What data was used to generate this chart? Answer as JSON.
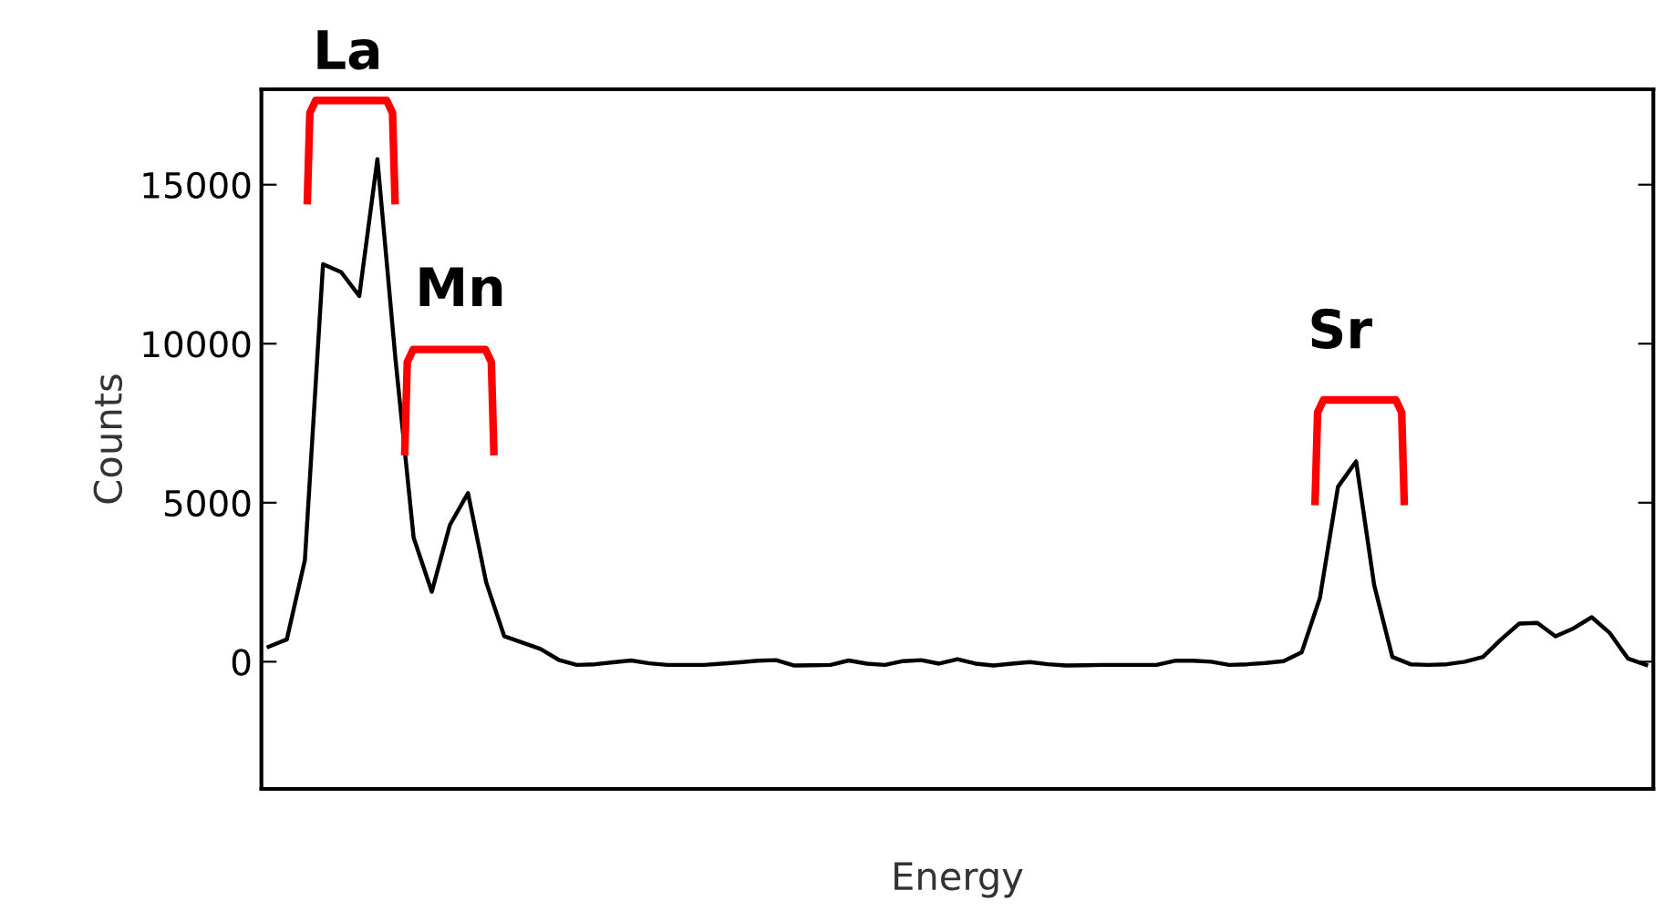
{
  "chart_data": {
    "type": "line",
    "xlabel": "Energy",
    "ylabel": "Counts",
    "categories": [
      null,
      null,
      null,
      null,
      null,
      null,
      null,
      null,
      null,
      null,
      null,
      null,
      null,
      null,
      null,
      null,
      null,
      null,
      null,
      null,
      null,
      null,
      null,
      null,
      null,
      null,
      null,
      null,
      null,
      null,
      null,
      null,
      null,
      null,
      null,
      null,
      null,
      null,
      null,
      null,
      null,
      null,
      null,
      null,
      null,
      null,
      null,
      null,
      null,
      null,
      null,
      null,
      null,
      null,
      null,
      null,
      null,
      null,
      null,
      null,
      null,
      null,
      null,
      null,
      null,
      null,
      null,
      null,
      null,
      null,
      null,
      null,
      null,
      null,
      null,
      null,
      null
    ],
    "series": [
      {
        "color": "#000000",
        "values": [
          470,
          700,
          3200,
          12500,
          12250,
          11500,
          15800,
          9500,
          3900,
          2200,
          4300,
          5300,
          2500,
          800,
          600,
          400,
          60,
          -100,
          -80,
          -20,
          40,
          -50,
          -100,
          -100,
          -100,
          -60,
          -20,
          30,
          50,
          -120,
          -110,
          -100,
          40,
          -60,
          -100,
          20,
          50,
          -60,
          80,
          -60,
          -120,
          -60,
          -10,
          -80,
          -120,
          -110,
          -100,
          -100,
          -100,
          -100,
          30,
          30,
          0,
          -100,
          -80,
          -40,
          20,
          300,
          2000,
          5500,
          6300,
          2400,
          150,
          -80,
          -100,
          -80,
          0,
          150,
          700,
          1200,
          1220,
          800,
          1050,
          1400,
          900,
          100,
          -100
        ]
      }
    ],
    "ylim": [
      -4000,
      18000
    ],
    "yticks": [
      0,
      5000,
      10000,
      15000
    ],
    "grid": false,
    "legend": false,
    "marker": "none",
    "line_style": "solid",
    "annotations": [
      "La",
      "Mn",
      "Sr"
    ]
  }
}
